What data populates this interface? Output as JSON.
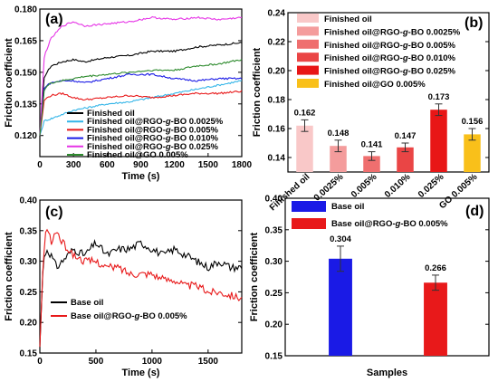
{
  "chart_data": [
    {
      "panel": "(a)",
      "type": "line",
      "xlabel": "Time (s)",
      "ylabel": "Friction coefficient",
      "xlim": [
        0,
        1800
      ],
      "ylim": [
        0.11,
        0.18
      ],
      "xticks": [
        0,
        300,
        600,
        900,
        1200,
        1500,
        1800
      ],
      "yticks": [
        0.12,
        0.135,
        0.15,
        0.165,
        0.18
      ],
      "series": [
        {
          "name": "Finished oil",
          "color": "#000000",
          "x": [
            0,
            40,
            100,
            200,
            300,
            400,
            600,
            800,
            1000,
            1200,
            1400,
            1600,
            1800
          ],
          "y": [
            0.12,
            0.148,
            0.153,
            0.155,
            0.156,
            0.155,
            0.157,
            0.158,
            0.16,
            0.16,
            0.162,
            0.163,
            0.164
          ]
        },
        {
          "name": "Finished oil@RGO-g-BO 0.0025%",
          "color": "#33b5e8",
          "x": [
            0,
            40,
            100,
            200,
            300,
            400,
            600,
            800,
            1000,
            1200,
            1400,
            1600,
            1800
          ],
          "y": [
            0.12,
            0.127,
            0.128,
            0.13,
            0.132,
            0.133,
            0.135,
            0.136,
            0.138,
            0.14,
            0.142,
            0.144,
            0.146
          ]
        },
        {
          "name": "Finished oil@RGO-g-BO 0.005%",
          "color": "#e8191a",
          "x": [
            0,
            40,
            100,
            200,
            300,
            400,
            600,
            800,
            1000,
            1200,
            1400,
            1600,
            1800
          ],
          "y": [
            0.12,
            0.137,
            0.139,
            0.14,
            0.138,
            0.137,
            0.138,
            0.139,
            0.138,
            0.139,
            0.14,
            0.14,
            0.141
          ]
        },
        {
          "name": "Finished oil@RGO-g-BO 0.010%",
          "color": "#1a1ae6",
          "x": [
            0,
            40,
            100,
            200,
            300,
            400,
            600,
            800,
            1000,
            1200,
            1400,
            1600,
            1800
          ],
          "y": [
            0.12,
            0.143,
            0.145,
            0.146,
            0.146,
            0.145,
            0.147,
            0.149,
            0.149,
            0.147,
            0.146,
            0.147,
            0.147
          ]
        },
        {
          "name": "Finished oil@RGO-g-BO 0.025%",
          "color": "#e633e6",
          "x": [
            0,
            40,
            100,
            200,
            300,
            400,
            600,
            800,
            1000,
            1200,
            1400,
            1600,
            1800
          ],
          "y": [
            0.12,
            0.158,
            0.166,
            0.172,
            0.174,
            0.172,
            0.173,
            0.174,
            0.176,
            0.175,
            0.176,
            0.175,
            0.176
          ]
        },
        {
          "name": "Finished oil@GO 0.005%",
          "color": "#2e8b2e",
          "x": [
            0,
            40,
            100,
            200,
            300,
            400,
            600,
            800,
            1000,
            1200,
            1400,
            1600,
            1800
          ],
          "y": [
            0.12,
            0.142,
            0.145,
            0.146,
            0.147,
            0.148,
            0.149,
            0.15,
            0.151,
            0.151,
            0.153,
            0.154,
            0.156
          ]
        }
      ]
    },
    {
      "panel": "(b)",
      "type": "bar",
      "ylabel": "Friction coefficient",
      "ylim": [
        0.13,
        0.24
      ],
      "yticks": [
        0.14,
        0.16,
        0.18,
        0.2,
        0.22,
        0.24
      ],
      "categories": [
        "Finished oil",
        "0.0025%",
        "0.005%",
        "0.010%",
        "0.025%",
        "GO 0.005%"
      ],
      "values": [
        0.162,
        0.148,
        0.141,
        0.147,
        0.173,
        0.156
      ],
      "value_labels": [
        "0.162",
        "0.148",
        "0.141",
        "0.147",
        "0.173",
        "0.156"
      ],
      "errors": [
        0.004,
        0.004,
        0.003,
        0.003,
        0.004,
        0.004
      ],
      "colors": [
        "#f9c8c8",
        "#f49c9c",
        "#ef6f6f",
        "#ea4545",
        "#e81616",
        "#f9c01a"
      ],
      "legend": [
        "Finished oil",
        "Finished oil@RGO-g-BO 0.0025%",
        "Finished oil@RGO-g-BO 0.005%",
        "Finished oil@RGO-g-BO 0.010%",
        "Finished oil@RGO-g-BO 0.025%",
        "Finished oil@GO 0.005%"
      ]
    },
    {
      "panel": "(c)",
      "type": "line",
      "xlabel": "Time (s)",
      "ylabel": "Friction coefficient",
      "xlim": [
        0,
        1800
      ],
      "ylim": [
        0.15,
        0.4
      ],
      "xticks": [
        0,
        500,
        1000,
        1500
      ],
      "yticks": [
        0.15,
        0.2,
        0.25,
        0.3,
        0.35,
        0.4
      ],
      "series": [
        {
          "name": "Base oil",
          "color": "#000000",
          "x": [
            0,
            30,
            60,
            100,
            150,
            200,
            300,
            400,
            500,
            600,
            700,
            800,
            900,
            1000,
            1100,
            1200,
            1300,
            1400,
            1500,
            1600,
            1700,
            1800
          ],
          "y": [
            0.16,
            0.3,
            0.32,
            0.31,
            0.29,
            0.3,
            0.32,
            0.31,
            0.33,
            0.31,
            0.32,
            0.32,
            0.33,
            0.32,
            0.31,
            0.32,
            0.31,
            0.3,
            0.29,
            0.3,
            0.29,
            0.29
          ]
        },
        {
          "name": "Base oil@RGO-g-BO 0.005%",
          "color": "#e8191a",
          "x": [
            0,
            30,
            60,
            100,
            150,
            200,
            300,
            400,
            500,
            600,
            700,
            800,
            900,
            1000,
            1100,
            1200,
            1300,
            1400,
            1500,
            1600,
            1700,
            1800
          ],
          "y": [
            0.16,
            0.3,
            0.36,
            0.33,
            0.35,
            0.33,
            0.31,
            0.3,
            0.3,
            0.29,
            0.29,
            0.28,
            0.28,
            0.28,
            0.27,
            0.27,
            0.26,
            0.26,
            0.25,
            0.25,
            0.245,
            0.24
          ]
        }
      ]
    },
    {
      "panel": "(d)",
      "type": "bar",
      "xlabel": "Samples",
      "ylabel": "Friction coefficient",
      "ylim": [
        0.15,
        0.4
      ],
      "yticks": [
        0.15,
        0.2,
        0.25,
        0.3,
        0.35,
        0.4
      ],
      "categories": [
        "Base oil",
        "Base oil@RGO-g-BO 0.005%"
      ],
      "values": [
        0.304,
        0.266
      ],
      "value_labels": [
        "0.304",
        "0.266"
      ],
      "errors": [
        0.02,
        0.012
      ],
      "colors": [
        "#1a1ae6",
        "#e8191a"
      ],
      "legend": [
        "Base oil",
        "Base oil@RGO-g-BO 0.005%"
      ]
    }
  ]
}
